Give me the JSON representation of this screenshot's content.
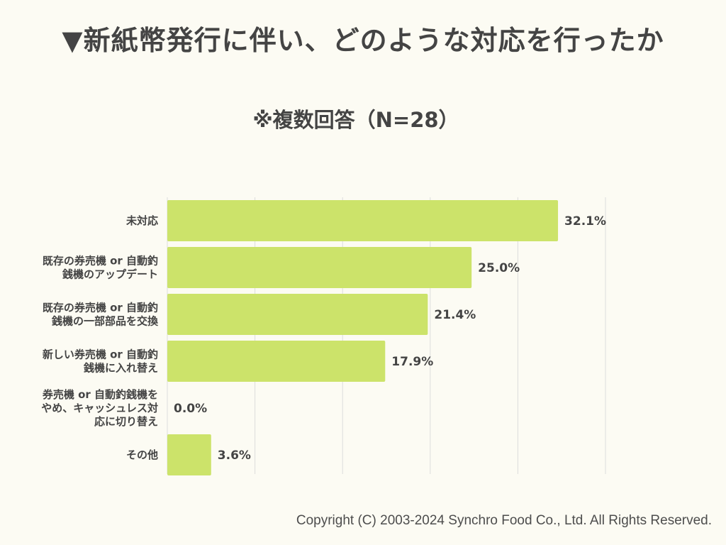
{
  "title": "▼新紙幣発行に伴い、どのような対応を行ったか",
  "copyright": "Copyright (C) 2003-2024  Synchro Food Co., Ltd. All Rights Reserved.",
  "colors": {
    "bar": "#cce36a",
    "grid": "#dcdcdc",
    "background": "#fcfbf3"
  },
  "chart_data": {
    "type": "bar",
    "orientation": "horizontal",
    "title": "▼新紙幣発行に伴い、どのような対応を行ったか",
    "subtitle": "※複数回答（N=28）",
    "categories": [
      [
        "未対応"
      ],
      [
        "既存の券売機 or 自動釣",
        "銭機のアップデート"
      ],
      [
        "既存の券売機 or 自動釣",
        "銭機の一部部品を交換"
      ],
      [
        "新しい券売機 or 自動釣",
        "銭機に入れ替え"
      ],
      [
        "券売機 or 自動釣銭機を",
        "やめ、キャッシュレス対",
        "応に切り替え"
      ],
      [
        "その他"
      ]
    ],
    "values": [
      32.1,
      25.0,
      21.4,
      17.9,
      0.0,
      3.6
    ],
    "value_labels": [
      "32.1%",
      "25.0%",
      "21.4%",
      "17.9%",
      "0.0%",
      "3.6%"
    ],
    "xlim": [
      0,
      36
    ],
    "gridlines": [
      7.2,
      14.4,
      21.6,
      28.8,
      36
    ],
    "xlabel": "",
    "ylabel": ""
  }
}
